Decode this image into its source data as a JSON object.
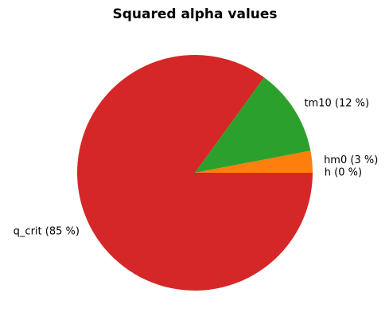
{
  "chart_data": {
    "type": "pie",
    "title": "Squared alpha values",
    "values": [
      0,
      3,
      12,
      85
    ],
    "value_labels": [
      "h (0 %)",
      "hm0 (3 %)",
      "tm10 (12 %)",
      "q_crit (85 %)"
    ],
    "colors": [
      "#1f77b4",
      "#ff7f0e",
      "#2ca02c",
      "#d62728"
    ]
  }
}
